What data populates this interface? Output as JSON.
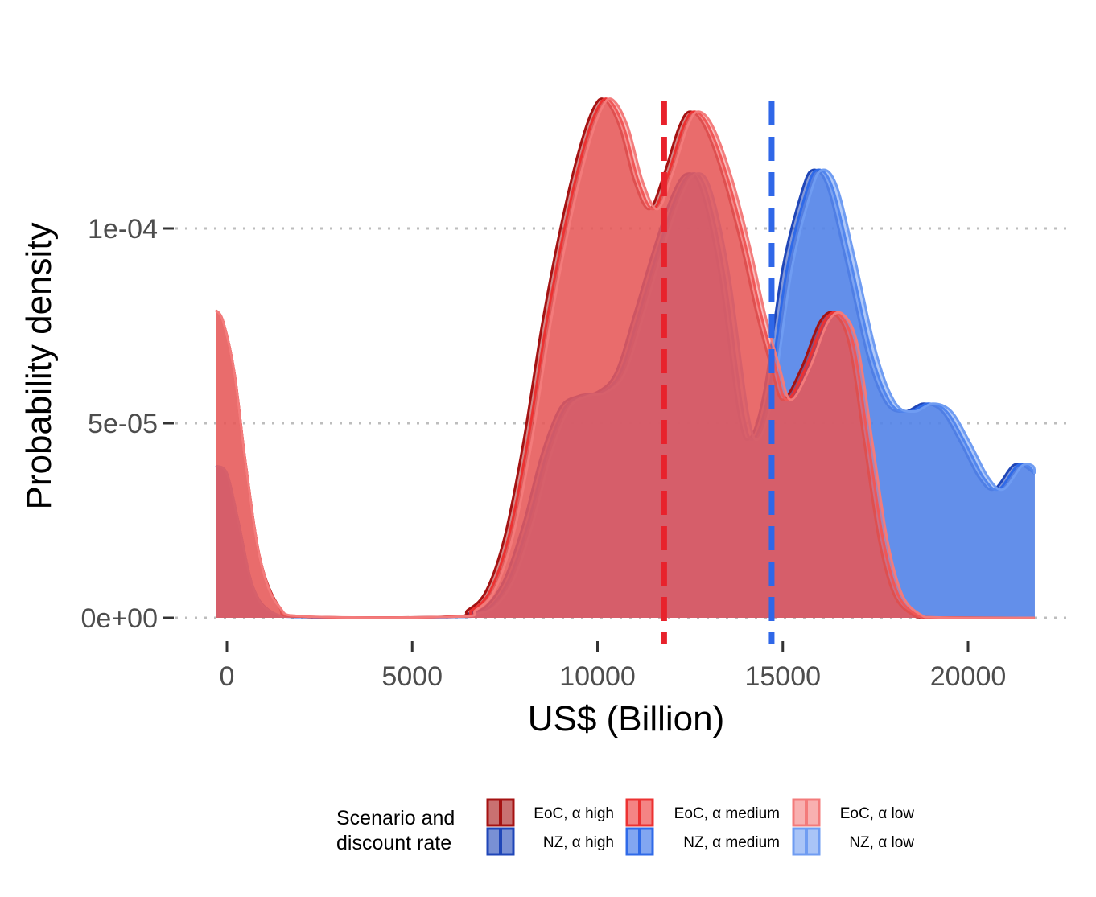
{
  "chart_data": {
    "type": "area",
    "xlabel": "US$ (Billion)",
    "ylabel": "Probability density",
    "xlim": [
      -500,
      22000
    ],
    "ylim": [
      0,
      0.000135
    ],
    "x_ticks": [
      0,
      5000,
      10000,
      15000,
      20000
    ],
    "x_tick_labels": [
      "0",
      "5000",
      "10000",
      "15000",
      "20000"
    ],
    "y_ticks": [
      0,
      5e-05,
      0.0001
    ],
    "y_tick_labels": [
      "0e+00",
      "5e-05",
      "1e-04"
    ],
    "grid": "horizontal dotted",
    "legend": {
      "title_lines": [
        "Scenario and",
        "discount rate"
      ],
      "placement": "bottom"
    },
    "vlines": [
      {
        "x": 11800,
        "color": "#e8222c",
        "style": "dashed"
      },
      {
        "x": 14700,
        "color": "#2f67e8",
        "style": "dashed"
      }
    ],
    "series": [
      {
        "name": "NZ,  α high",
        "group": "NZ",
        "color": "#1f46b8",
        "shift": 0,
        "points": [
          [
            -300,
            3.9e-05
          ],
          [
            0,
            3.7e-05
          ],
          [
            300,
            2.5e-05
          ],
          [
            700,
            8e-06
          ],
          [
            1200,
            1.5e-06
          ],
          [
            2000,
            2e-07
          ],
          [
            6000,
            2e-07
          ],
          [
            6500,
            1e-06
          ],
          [
            7000,
            3e-06
          ],
          [
            7500,
            1e-05
          ],
          [
            8000,
            2.4e-05
          ],
          [
            8500,
            4.2e-05
          ],
          [
            9000,
            5.4e-05
          ],
          [
            9500,
            5.7e-05
          ],
          [
            10000,
            5.8e-05
          ],
          [
            10500,
            6.3e-05
          ],
          [
            11000,
            7.8e-05
          ],
          [
            11500,
            9.4e-05
          ],
          [
            12000,
            0.000108
          ],
          [
            12400,
            0.000114
          ],
          [
            12800,
            0.00011
          ],
          [
            13300,
            8.8e-05
          ],
          [
            13800,
            5.3e-05
          ],
          [
            14100,
            4.6e-05
          ],
          [
            14500,
            5.8e-05
          ],
          [
            15000,
            9e-05
          ],
          [
            15500,
            0.000109
          ],
          [
            15800,
            0.000115
          ],
          [
            16200,
            0.000111
          ],
          [
            16700,
            9.2e-05
          ],
          [
            17300,
            6.7e-05
          ],
          [
            17800,
            5.5e-05
          ],
          [
            18300,
            5.3e-05
          ],
          [
            18800,
            5.5e-05
          ],
          [
            19300,
            5.3e-05
          ],
          [
            19800,
            4.5e-05
          ],
          [
            20300,
            3.6e-05
          ],
          [
            20700,
            3.3e-05
          ],
          [
            21200,
            3.9e-05
          ],
          [
            21500,
            3.9e-05
          ],
          [
            21800,
            3.7e-05
          ]
        ]
      },
      {
        "name": "NZ,  α medium",
        "group": "NZ",
        "color": "#2f6ae8",
        "shift": 120,
        "points": [
          [
            -300,
            3.9e-05
          ],
          [
            0,
            3.7e-05
          ],
          [
            300,
            2.5e-05
          ],
          [
            700,
            8e-06
          ],
          [
            1200,
            1.5e-06
          ],
          [
            2000,
            2e-07
          ],
          [
            6000,
            2e-07
          ],
          [
            6500,
            1e-06
          ],
          [
            7000,
            3e-06
          ],
          [
            7500,
            1e-05
          ],
          [
            8000,
            2.4e-05
          ],
          [
            8500,
            4.2e-05
          ],
          [
            9000,
            5.4e-05
          ],
          [
            9500,
            5.7e-05
          ],
          [
            10000,
            5.8e-05
          ],
          [
            10500,
            6.3e-05
          ],
          [
            11000,
            7.8e-05
          ],
          [
            11500,
            9.4e-05
          ],
          [
            12000,
            0.000108
          ],
          [
            12400,
            0.000114
          ],
          [
            12800,
            0.00011
          ],
          [
            13300,
            8.8e-05
          ],
          [
            13800,
            5.3e-05
          ],
          [
            14100,
            4.6e-05
          ],
          [
            14500,
            5.8e-05
          ],
          [
            15000,
            9e-05
          ],
          [
            15500,
            0.000109
          ],
          [
            15800,
            0.000115
          ],
          [
            16200,
            0.000111
          ],
          [
            16700,
            9.2e-05
          ],
          [
            17300,
            6.7e-05
          ],
          [
            17800,
            5.5e-05
          ],
          [
            18300,
            5.3e-05
          ],
          [
            18800,
            5.5e-05
          ],
          [
            19300,
            5.3e-05
          ],
          [
            19800,
            4.5e-05
          ],
          [
            20300,
            3.6e-05
          ],
          [
            20700,
            3.3e-05
          ],
          [
            21200,
            3.9e-05
          ],
          [
            21500,
            3.9e-05
          ],
          [
            21800,
            3.7e-05
          ]
        ]
      },
      {
        "name": "NZ,  α low",
        "group": "NZ",
        "color": "#6f9cf2",
        "shift": 250,
        "points": [
          [
            -300,
            3.9e-05
          ],
          [
            0,
            3.7e-05
          ],
          [
            300,
            2.5e-05
          ],
          [
            700,
            8e-06
          ],
          [
            1200,
            1.5e-06
          ],
          [
            2000,
            2e-07
          ],
          [
            6000,
            2e-07
          ],
          [
            6500,
            1e-06
          ],
          [
            7000,
            3e-06
          ],
          [
            7500,
            1e-05
          ],
          [
            8000,
            2.4e-05
          ],
          [
            8500,
            4.2e-05
          ],
          [
            9000,
            5.4e-05
          ],
          [
            9500,
            5.7e-05
          ],
          [
            10000,
            5.8e-05
          ],
          [
            10500,
            6.3e-05
          ],
          [
            11000,
            7.8e-05
          ],
          [
            11500,
            9.4e-05
          ],
          [
            12000,
            0.000108
          ],
          [
            12400,
            0.000114
          ],
          [
            12800,
            0.00011
          ],
          [
            13300,
            8.8e-05
          ],
          [
            13800,
            5.3e-05
          ],
          [
            14100,
            4.6e-05
          ],
          [
            14500,
            5.8e-05
          ],
          [
            15000,
            9e-05
          ],
          [
            15500,
            0.000109
          ],
          [
            15800,
            0.000115
          ],
          [
            16200,
            0.000111
          ],
          [
            16700,
            9.2e-05
          ],
          [
            17300,
            6.7e-05
          ],
          [
            17800,
            5.5e-05
          ],
          [
            18300,
            5.3e-05
          ],
          [
            18800,
            5.5e-05
          ],
          [
            19300,
            5.3e-05
          ],
          [
            19800,
            4.5e-05
          ],
          [
            20300,
            3.6e-05
          ],
          [
            20700,
            3.3e-05
          ],
          [
            21200,
            3.9e-05
          ],
          [
            21500,
            3.9e-05
          ],
          [
            21800,
            3.7e-05
          ]
        ]
      },
      {
        "name": "EoC, α high",
        "group": "EoC",
        "color": "#a51212",
        "shift": 0,
        "points": [
          [
            -300,
            7.9e-05
          ],
          [
            -100,
            7.6e-05
          ],
          [
            200,
            6.3e-05
          ],
          [
            500,
            4e-05
          ],
          [
            900,
            1.5e-05
          ],
          [
            1400,
            3e-06
          ],
          [
            2000,
            3e-07
          ],
          [
            6000,
            3e-07
          ],
          [
            6500,
            2e-06
          ],
          [
            7000,
            7e-06
          ],
          [
            7500,
            2.1e-05
          ],
          [
            8000,
            4.5e-05
          ],
          [
            8500,
            7.5e-05
          ],
          [
            9000,
            0.0001
          ],
          [
            9500,
            0.00012
          ],
          [
            9900,
            0.000131
          ],
          [
            10200,
            0.000133
          ],
          [
            10600,
            0.000126
          ],
          [
            11000,
            0.000112
          ],
          [
            11400,
            0.000105
          ],
          [
            11800,
            0.000114
          ],
          [
            12200,
            0.000126
          ],
          [
            12500,
            0.00013
          ],
          [
            12900,
            0.000126
          ],
          [
            13400,
            0.000113
          ],
          [
            13900,
            9.5e-05
          ],
          [
            14300,
            7.8e-05
          ],
          [
            14700,
            6.4e-05
          ],
          [
            15000,
            5.6e-05
          ],
          [
            15500,
            6.4e-05
          ],
          [
            16000,
            7.6e-05
          ],
          [
            16400,
            7.8e-05
          ],
          [
            16800,
            7e-05
          ],
          [
            17200,
            4.5e-05
          ],
          [
            17600,
            2e-05
          ],
          [
            18000,
            6e-06
          ],
          [
            18500,
            8e-07
          ],
          [
            19000,
            1e-07
          ],
          [
            21800,
            0
          ]
        ]
      },
      {
        "name": "EoC, α medium",
        "group": "EoC",
        "color": "#ec3232",
        "shift": 110,
        "points": [
          [
            -300,
            7.9e-05
          ],
          [
            -100,
            7.6e-05
          ],
          [
            200,
            6.3e-05
          ],
          [
            500,
            4e-05
          ],
          [
            900,
            1.5e-05
          ],
          [
            1400,
            3e-06
          ],
          [
            2000,
            3e-07
          ],
          [
            6000,
            3e-07
          ],
          [
            6500,
            2e-06
          ],
          [
            7000,
            7e-06
          ],
          [
            7500,
            2.1e-05
          ],
          [
            8000,
            4.5e-05
          ],
          [
            8500,
            7.5e-05
          ],
          [
            9000,
            0.0001
          ],
          [
            9500,
            0.00012
          ],
          [
            9900,
            0.000131
          ],
          [
            10200,
            0.000133
          ],
          [
            10600,
            0.000126
          ],
          [
            11000,
            0.000112
          ],
          [
            11400,
            0.000105
          ],
          [
            11800,
            0.000114
          ],
          [
            12200,
            0.000126
          ],
          [
            12500,
            0.00013
          ],
          [
            12900,
            0.000126
          ],
          [
            13400,
            0.000113
          ],
          [
            13900,
            9.5e-05
          ],
          [
            14300,
            7.8e-05
          ],
          [
            14700,
            6.4e-05
          ],
          [
            15000,
            5.6e-05
          ],
          [
            15500,
            6.4e-05
          ],
          [
            16000,
            7.6e-05
          ],
          [
            16400,
            7.8e-05
          ],
          [
            16800,
            7e-05
          ],
          [
            17200,
            4.5e-05
          ],
          [
            17600,
            2e-05
          ],
          [
            18000,
            6e-06
          ],
          [
            18500,
            8e-07
          ],
          [
            19000,
            1e-07
          ],
          [
            21800,
            0
          ]
        ]
      },
      {
        "name": "EoC, α low",
        "group": "EoC",
        "color": "#f37b7b",
        "shift": 220,
        "points": [
          [
            -300,
            7.9e-05
          ],
          [
            -100,
            7.6e-05
          ],
          [
            200,
            6.3e-05
          ],
          [
            500,
            4e-05
          ],
          [
            900,
            1.5e-05
          ],
          [
            1400,
            3e-06
          ],
          [
            2000,
            3e-07
          ],
          [
            6000,
            3e-07
          ],
          [
            6500,
            2e-06
          ],
          [
            7000,
            7e-06
          ],
          [
            7500,
            2.1e-05
          ],
          [
            8000,
            4.5e-05
          ],
          [
            8500,
            7.5e-05
          ],
          [
            9000,
            0.0001
          ],
          [
            9500,
            0.00012
          ],
          [
            9900,
            0.000131
          ],
          [
            10200,
            0.000133
          ],
          [
            10600,
            0.000126
          ],
          [
            11000,
            0.000112
          ],
          [
            11400,
            0.000105
          ],
          [
            11800,
            0.000114
          ],
          [
            12200,
            0.000126
          ],
          [
            12500,
            0.00013
          ],
          [
            12900,
            0.000126
          ],
          [
            13400,
            0.000113
          ],
          [
            13900,
            9.5e-05
          ],
          [
            14300,
            7.8e-05
          ],
          [
            14700,
            6.4e-05
          ],
          [
            15000,
            5.6e-05
          ],
          [
            15500,
            6.4e-05
          ],
          [
            16000,
            7.6e-05
          ],
          [
            16400,
            7.8e-05
          ],
          [
            16800,
            7e-05
          ],
          [
            17200,
            4.5e-05
          ],
          [
            17600,
            2e-05
          ],
          [
            18000,
            6e-06
          ],
          [
            18500,
            8e-07
          ],
          [
            19000,
            1e-07
          ],
          [
            21800,
            0
          ]
        ]
      }
    ],
    "legend_order": [
      [
        "EoC, α high",
        "EoC, α medium",
        "EoC, α low"
      ],
      [
        "NZ,  α high",
        "NZ,  α medium",
        "NZ,  α low"
      ]
    ]
  }
}
